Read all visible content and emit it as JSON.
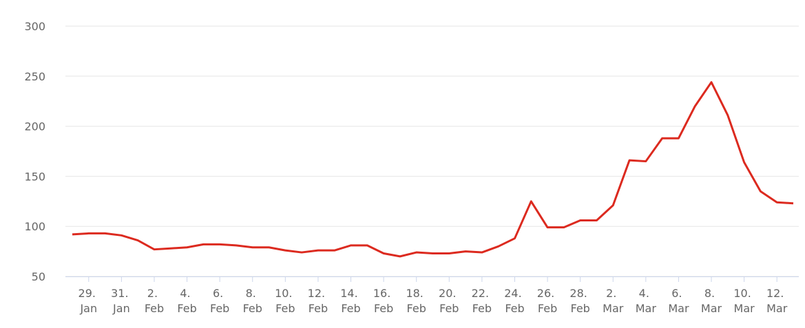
{
  "chart_data": {
    "type": "line",
    "categories": [
      null,
      "29. Jan",
      null,
      "31. Jan",
      null,
      "2. Feb",
      null,
      "4. Feb",
      null,
      "6. Feb",
      null,
      "8. Feb",
      null,
      "10. Feb",
      null,
      "12. Feb",
      null,
      "14. Feb",
      null,
      "16. Feb",
      null,
      "18. Feb",
      null,
      "20. Feb",
      null,
      "22. Feb",
      null,
      "24. Feb",
      null,
      "26. Feb",
      null,
      "28. Feb",
      null,
      "2. Mar",
      null,
      "4. Mar",
      null,
      "6. Mar",
      null,
      "8. Mar",
      null,
      "10. Mar",
      null,
      "12. Mar",
      null
    ],
    "series": [
      {
        "color": "#dc2a1f",
        "values": [
          92,
          93,
          93,
          91,
          86,
          77,
          78,
          79,
          82,
          82,
          81,
          79,
          79,
          76,
          74,
          76,
          76,
          81,
          81,
          73,
          70,
          74,
          73,
          73,
          75,
          74,
          80,
          88,
          125,
          99,
          99,
          106,
          106,
          121,
          166,
          165,
          188,
          188,
          220,
          244,
          211,
          164,
          135,
          124,
          123
        ]
      }
    ],
    "ylim": [
      50,
      300
    ],
    "yticks": [
      50,
      100,
      150,
      200,
      250,
      300
    ],
    "grid": true
  }
}
